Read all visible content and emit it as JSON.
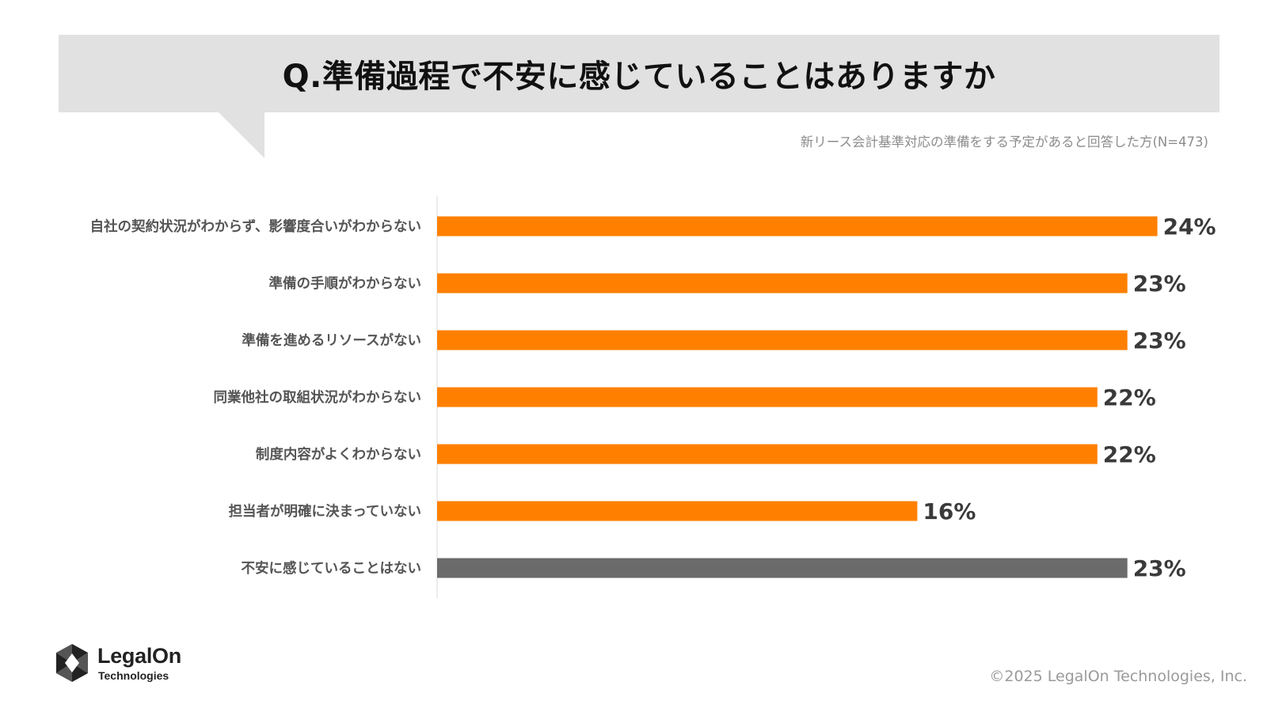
{
  "header": {
    "title": "Q.準備過程で不安に感じていることはありますか",
    "subtitle": "新リース会計基準対応の準備をする予定があると回答した方(N=473)"
  },
  "chart_data": {
    "type": "bar",
    "orientation": "horizontal",
    "title": "Q.準備過程で不安に感じていることはありますか",
    "categories": [
      "自社の契約状況がわからず、影響度合いがわからない",
      "準備の手順がわからない",
      "準備を進めるリソースがない",
      "同業他社の取組状況がわからない",
      "制度内容がよくわからない",
      "担当者が明確に決まっていない",
      "不安に感じていることはない"
    ],
    "values": [
      24,
      23,
      23,
      22,
      22,
      16,
      23
    ],
    "value_labels": [
      "24%",
      "23%",
      "23%",
      "22%",
      "22%",
      "16%",
      "23%"
    ],
    "unit": "%",
    "bar_colors": [
      "#ff8000",
      "#ff8000",
      "#ff8000",
      "#ff8000",
      "#ff8000",
      "#ff8000",
      "#6b6b6b"
    ],
    "grid": false,
    "legend": "none"
  },
  "colors": {
    "accent": "#ff8000",
    "neutral_bar": "#6b6b6b",
    "banner": "#e1e1e1"
  },
  "footer": {
    "logo_name": "LegalOn",
    "logo_sub": "Technologies",
    "copyright": "©2025 LegalOn Technologies, Inc."
  }
}
